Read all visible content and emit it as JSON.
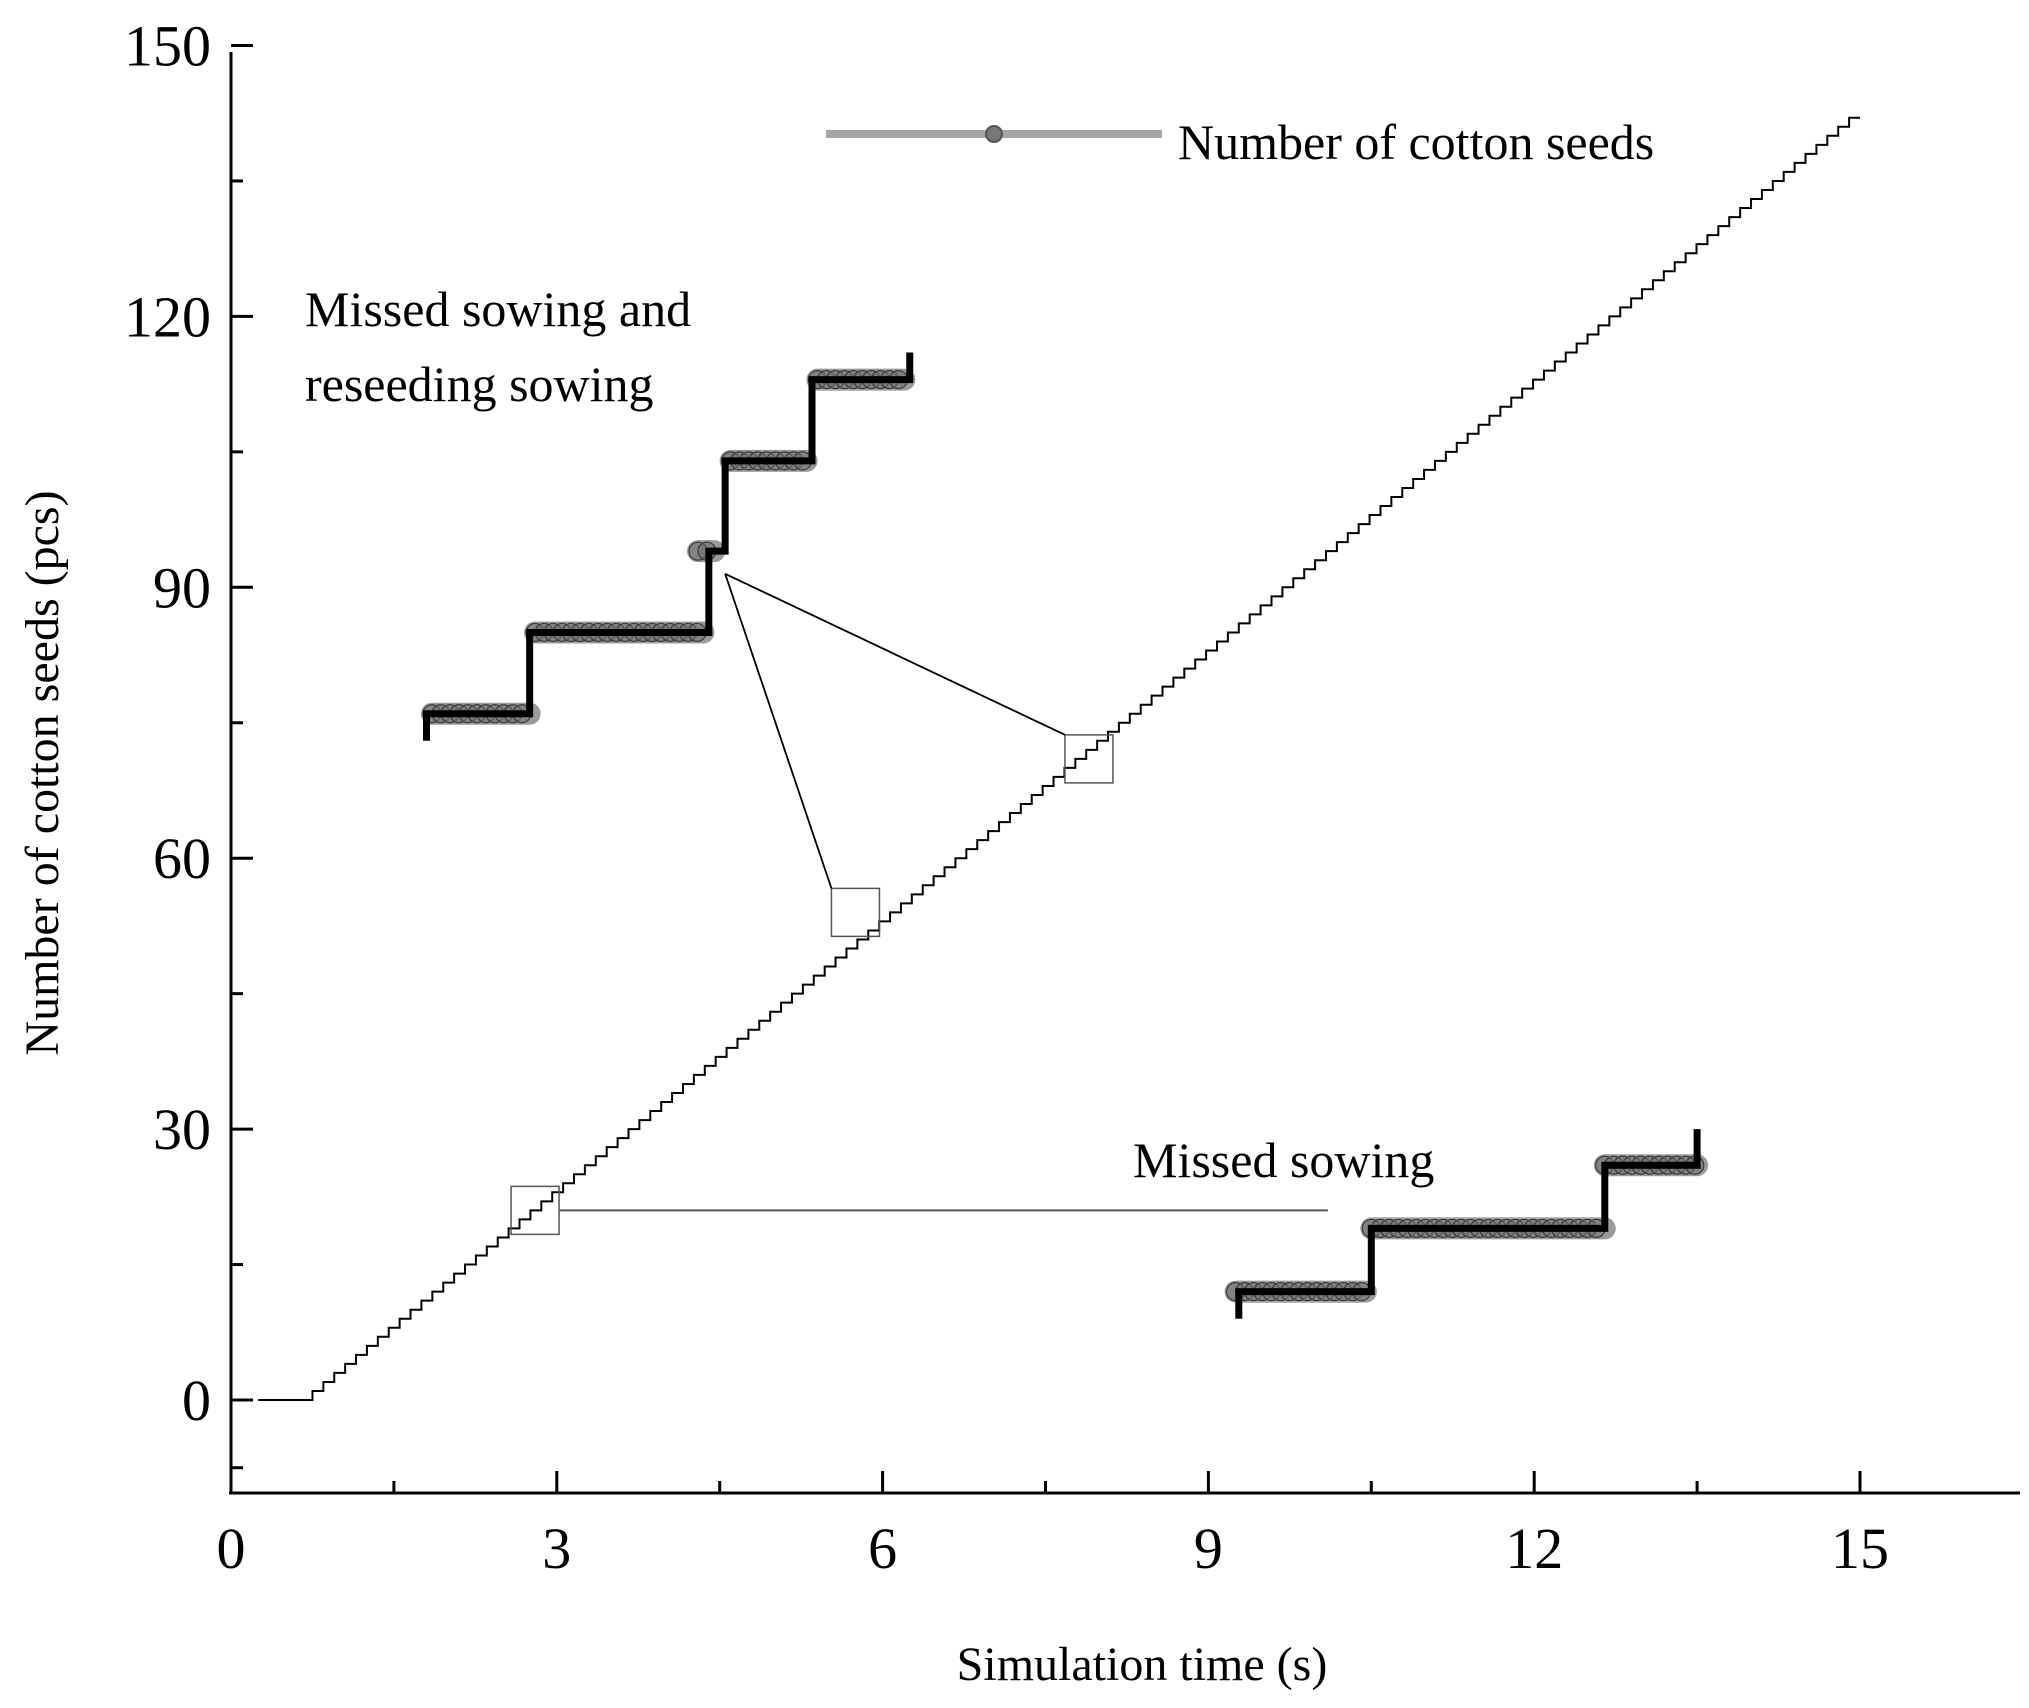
{
  "chart_data": {
    "type": "line",
    "title": "",
    "xlabel": "Simulation time (s)",
    "ylabel": "Number of cotton seeds (pcs)",
    "xlim": [
      0,
      16.5
    ],
    "ylim": [
      -10,
      150
    ],
    "xticks": [
      0,
      3,
      6,
      9,
      12,
      15
    ],
    "yticks": [
      0,
      30,
      60,
      90,
      120,
      150
    ],
    "xtick_labels": [
      "0",
      "3",
      "6",
      "9",
      "12",
      "15"
    ],
    "ytick_labels": [
      "0",
      "30",
      "60",
      "90",
      "120",
      "150"
    ],
    "grid": false,
    "legend": {
      "position": "top-right",
      "entries": [
        "Number of cotton seeds"
      ]
    },
    "series": [
      {
        "name": "Number of cotton seeds",
        "style": "step",
        "color": "#000000",
        "start_time": 0.75,
        "end_time": 15.0,
        "start_count": 0,
        "end_count": 142,
        "points": [
          [
            0.25,
            0
          ],
          [
            0.75,
            0
          ],
          [
            15.0,
            142
          ]
        ]
      }
    ],
    "annotations": [
      {
        "text_lines": [
          "Missed sowing and",
          "reseeding sowing"
        ],
        "zoom_boxes": [
          [
            5.75,
            54
          ],
          [
            7.9,
            71
          ]
        ],
        "inset_steps": [
          [
            1.8,
            73
          ],
          [
            1.8,
            76
          ],
          [
            2.75,
            76
          ],
          [
            2.75,
            85
          ],
          [
            4.4,
            85
          ],
          [
            4.4,
            94
          ],
          [
            4.55,
            94
          ],
          [
            4.55,
            104
          ],
          [
            5.35,
            104
          ],
          [
            5.35,
            113
          ],
          [
            6.25,
            113
          ],
          [
            6.25,
            116
          ]
        ],
        "inset_marker_runs": [
          [
            1.85,
            2.75,
            76
          ],
          [
            2.8,
            4.35,
            85
          ],
          [
            4.3,
            4.45,
            94
          ],
          [
            4.6,
            5.3,
            104
          ],
          [
            5.4,
            6.2,
            113
          ]
        ]
      },
      {
        "text_lines": [
          "Missed sowing"
        ],
        "zoom_boxes": [
          [
            2.8,
            21
          ]
        ],
        "inset_steps": [
          [
            9.28,
            9
          ],
          [
            9.28,
            12
          ],
          [
            10.5,
            12
          ],
          [
            10.5,
            19
          ],
          [
            12.65,
            19
          ],
          [
            12.65,
            26
          ],
          [
            13.5,
            26
          ],
          [
            13.5,
            30
          ]
        ],
        "inset_marker_runs": [
          [
            9.25,
            10.45,
            12
          ],
          [
            10.5,
            12.65,
            19
          ],
          [
            12.65,
            13.5,
            26
          ]
        ]
      }
    ]
  }
}
